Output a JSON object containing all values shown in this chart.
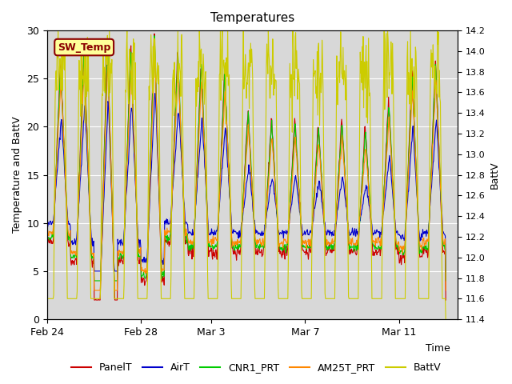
{
  "title": "Temperatures",
  "ylabel_left": "Temperature and BattV",
  "ylabel_right": "BattV",
  "xlim_dates": [
    "Feb 24",
    "Feb 28",
    "Mar 3",
    "Mar 7",
    "Mar 11"
  ],
  "xtick_positions": [
    0,
    4,
    7,
    11,
    15
  ],
  "xlim": [
    0,
    17.5
  ],
  "ylim_left": [
    0,
    30
  ],
  "ylim_right": [
    11.4,
    14.2
  ],
  "yticks_left": [
    0,
    5,
    10,
    15,
    20,
    25,
    30
  ],
  "yticks_right": [
    11.4,
    11.6,
    11.8,
    12.0,
    12.2,
    12.4,
    12.6,
    12.8,
    13.0,
    13.2,
    13.4,
    13.6,
    13.8,
    14.0,
    14.2
  ],
  "legend_entries": [
    "PanelT",
    "AirT",
    "CNR1_PRT",
    "AM25T_PRT",
    "BattV"
  ],
  "legend_colors": [
    "#cc0000",
    "#0000cc",
    "#00cc00",
    "#ff8800",
    "#cccc00"
  ],
  "annotation_text": "SW_Temp",
  "annotation_color": "#8b0000",
  "annotation_bg": "#ffff99",
  "annotation_border": "#8b0000",
  "plot_bg_color": "#d8d8d8",
  "fig_bg_color": "#ffffff",
  "grid_color": "#ffffff",
  "seed": 42,
  "n_days": 17
}
